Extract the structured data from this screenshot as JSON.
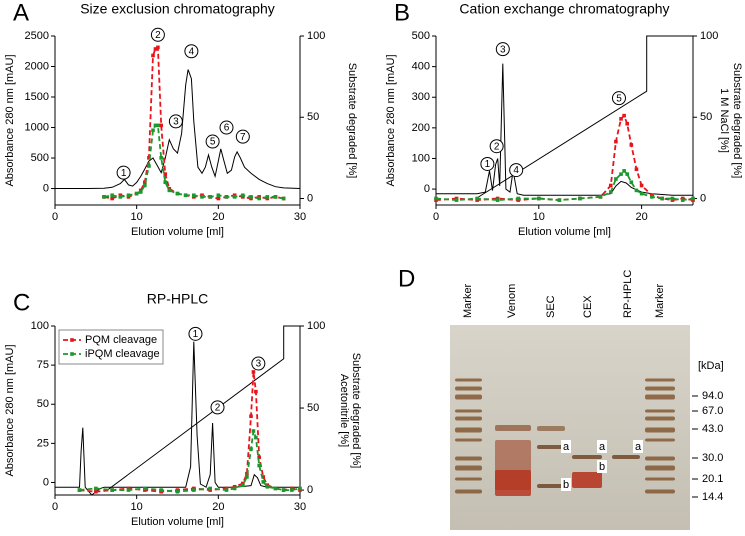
{
  "chart_data": [
    {
      "type": "line",
      "panel": "A",
      "title": "Size exclusion chromatography",
      "xlabel": "Elution volume [ml]",
      "ylabel": "Absorbance 280 nm [mAU]",
      "y2label": "Substrate degraded [%]",
      "xlim": [
        0,
        30
      ],
      "xticks": [
        0,
        10,
        20,
        30
      ],
      "ylim": [
        -270,
        2500
      ],
      "yticks": [
        0,
        500,
        1000,
        1500,
        2000,
        2500
      ],
      "y2lim": [
        -4,
        100
      ],
      "y2ticks": [
        0,
        50,
        100
      ],
      "series": [
        {
          "color": "#000000",
          "style": "solid",
          "axis": "y",
          "x": [
            0,
            2,
            4,
            6,
            7,
            8,
            8.5,
            9,
            9.5,
            10,
            10.5,
            11,
            11.5,
            12,
            12.5,
            13,
            13.5,
            14,
            14.5,
            15,
            15.5,
            16,
            16.3,
            16.7,
            17,
            17.5,
            18,
            18.4,
            18.8,
            19.2,
            19.6,
            20,
            20.3,
            20.7,
            21.1,
            21.6,
            22,
            22.3,
            22.7,
            23.2,
            24,
            25,
            26,
            27,
            28,
            30
          ],
          "values": [
            0,
            0,
            0,
            5,
            20,
            80,
            150,
            60,
            40,
            100,
            200,
            320,
            450,
            500,
            380,
            260,
            500,
            800,
            650,
            580,
            900,
            1700,
            1950,
            1800,
            1100,
            350,
            250,
            350,
            550,
            350,
            200,
            450,
            650,
            450,
            250,
            300,
            520,
            600,
            500,
            350,
            250,
            150,
            80,
            30,
            10,
            0
          ]
        },
        {
          "color": "#e8141c",
          "style": "dashed",
          "markers": true,
          "axis": "y2",
          "x": [
            6,
            7,
            8,
            9,
            10,
            10.5,
            11,
            11.5,
            12,
            12.3,
            12.6,
            13,
            13.5,
            14,
            15,
            16,
            17,
            18,
            19,
            20,
            21,
            22,
            23,
            24,
            25,
            26,
            27,
            28
          ],
          "values": [
            1,
            0,
            2,
            1,
            3,
            5,
            10,
            25,
            88,
            92,
            93,
            45,
            15,
            6,
            3,
            2,
            1,
            2,
            1,
            0,
            1,
            2,
            1,
            0,
            1,
            0,
            1,
            0
          ]
        },
        {
          "color": "#1a9a2e",
          "style": "dashed",
          "markers": true,
          "axis": "y2",
          "x": [
            6,
            7,
            8,
            9,
            10,
            10.5,
            11,
            11.5,
            12,
            12.3,
            12.6,
            13,
            13.5,
            14,
            15,
            16,
            17,
            18,
            19,
            20,
            21,
            22,
            23,
            24,
            25,
            26,
            27,
            28
          ],
          "values": [
            1,
            2,
            1,
            2,
            3,
            4,
            8,
            20,
            42,
            45,
            45,
            25,
            10,
            5,
            3,
            2,
            2,
            1,
            1,
            2,
            1,
            1,
            2,
            1,
            0,
            1,
            1,
            0
          ]
        }
      ],
      "annotations": [
        {
          "label": "1",
          "x": 8.4,
          "y": 260
        },
        {
          "label": "2",
          "x": 12.6,
          "y": 2520
        },
        {
          "label": "3",
          "x": 14.8,
          "y": 1100
        },
        {
          "label": "4",
          "x": 16.7,
          "y": 2250
        },
        {
          "label": "5",
          "x": 19.3,
          "y": 770
        },
        {
          "label": "6",
          "x": 21,
          "y": 1000
        },
        {
          "label": "7",
          "x": 23,
          "y": 850
        }
      ]
    },
    {
      "type": "line",
      "panel": "B",
      "title": "Cation exchange chromatography",
      "xlabel": "Elution volume [ml]",
      "ylabel": "Absorbance 280 nm [mAU]",
      "y2label": "Substrate degraded [%]",
      "gradient_label": "1 M NaCl [%]",
      "xlim": [
        0,
        25
      ],
      "xticks": [
        0,
        10,
        20
      ],
      "ylim": [
        -52,
        500
      ],
      "yticks": [
        0,
        100,
        200,
        300,
        400,
        500
      ],
      "y2lim": [
        -4,
        100
      ],
      "y2ticks": [
        0,
        50,
        100
      ],
      "series": [
        {
          "color": "#000000",
          "style": "solid",
          "axis": "y",
          "x": [
            0,
            2,
            4,
            4.8,
            5.2,
            5.5,
            5.8,
            6.0,
            6.2,
            6.5,
            6.8,
            7.2,
            7.5,
            7.9,
            8.5,
            10,
            12,
            14,
            16,
            17,
            17.5,
            18,
            18.5,
            19,
            20,
            21,
            23,
            25
          ],
          "values": [
            -15,
            -15,
            -15,
            -10,
            60,
            -5,
            80,
            100,
            10,
            410,
            0,
            -10,
            60,
            -15,
            -20,
            -20,
            -20,
            -20,
            -20,
            -15,
            10,
            25,
            20,
            5,
            -10,
            -15,
            -20,
            -20
          ]
        },
        {
          "color": "#000000",
          "style": "solid",
          "axis": "y2",
          "x": [
            3.9,
            20.5,
            20.5,
            25
          ],
          "values": [
            0,
            66,
            100,
            100
          ]
        },
        {
          "color": "#e8141c",
          "style": "dashed",
          "markers": true,
          "axis": "y2",
          "x": [
            0,
            2,
            4,
            6,
            8,
            10,
            12,
            14,
            16,
            17,
            17.5,
            18,
            18.3,
            18.6,
            19,
            19.5,
            20,
            21,
            22,
            23,
            24,
            25
          ],
          "values": [
            -1,
            0,
            -1,
            0,
            -1,
            0,
            -1,
            0,
            1,
            8,
            35,
            49,
            51,
            46,
            33,
            18,
            8,
            2,
            0,
            -1,
            0,
            -1
          ]
        },
        {
          "color": "#1a9a2e",
          "style": "dashed",
          "markers": true,
          "axis": "y2",
          "x": [
            0,
            2,
            4,
            6,
            8,
            10,
            12,
            14,
            16,
            17,
            17.5,
            18,
            18.3,
            18.6,
            19,
            19.5,
            20,
            21,
            22,
            23,
            24,
            25
          ],
          "values": [
            0,
            -1,
            0,
            -1,
            0,
            0,
            -1,
            0,
            1,
            4,
            12,
            15,
            17,
            15,
            10,
            5,
            3,
            1,
            0,
            0,
            -1,
            0
          ]
        }
      ],
      "annotations": [
        {
          "label": "1",
          "x": 5.0,
          "y": 82
        },
        {
          "label": "2",
          "x": 5.9,
          "y": 140
        },
        {
          "label": "3",
          "x": 6.5,
          "y": 457
        },
        {
          "label": "4",
          "x": 7.8,
          "y": 62
        },
        {
          "label": "5",
          "x": 17.8,
          "y": 297
        }
      ]
    },
    {
      "type": "line",
      "panel": "C",
      "title": "RP-HPLC",
      "xlabel": "Elution volume [ml]",
      "ylabel": "Absorbance 280 nm [mAU]",
      "y2label": "Substrate degraded [%]",
      "gradient_label": "Acetonitrile [%]",
      "xlim": [
        0,
        30
      ],
      "xticks": [
        0,
        10,
        20,
        30
      ],
      "ylim": [
        -8,
        100
      ],
      "yticks": [
        0,
        25,
        50,
        75,
        100
      ],
      "y2lim": [
        -3,
        100
      ],
      "y2ticks": [
        0,
        50,
        100
      ],
      "legend": "upper left",
      "series": [
        {
          "color": "#000000",
          "style": "solid",
          "axis": "y",
          "x": [
            0,
            1,
            2,
            3,
            3.2,
            3.4,
            3.7,
            4,
            4.5,
            5,
            5.5,
            6,
            8,
            10,
            12,
            14,
            16,
            16.6,
            17,
            17.4,
            17.8,
            18.5,
            19,
            19.3,
            19.6,
            20,
            22,
            24,
            24.4,
            24.8,
            25.2,
            26,
            28,
            30
          ],
          "values": [
            -3,
            -3,
            -3,
            -3,
            20,
            35,
            -3,
            -5,
            -8,
            -6,
            -4,
            -3,
            -3,
            -3,
            -3,
            -3,
            -3,
            10,
            90,
            30,
            -1,
            -3,
            5,
            38,
            0,
            -3,
            -3,
            -2,
            5,
            3,
            -2,
            -3,
            -3,
            -3
          ]
        },
        {
          "color": "#000000",
          "style": "solid",
          "axis": "y2",
          "x": [
            6.4,
            28,
            28,
            30
          ],
          "values": [
            0,
            80,
            100,
            100
          ]
        },
        {
          "name": "PQM cleavage",
          "color": "#e8141c",
          "style": "dashed",
          "markers": true,
          "axis": "y2",
          "x": [
            3,
            5,
            7,
            9,
            11,
            13,
            15,
            17,
            19,
            21,
            22,
            23,
            23.5,
            24,
            24.3,
            24.6,
            25,
            25.5,
            26,
            27,
            28,
            29,
            30
          ],
          "values": [
            0,
            -1,
            0,
            1,
            0,
            -1,
            0,
            1,
            0,
            1,
            2,
            4,
            10,
            45,
            72,
            60,
            20,
            8,
            3,
            1,
            0,
            1,
            0
          ]
        },
        {
          "name": "iPQM cleavage",
          "color": "#1a9a2e",
          "style": "dashed",
          "markers": true,
          "axis": "y2",
          "x": [
            3,
            5,
            7,
            9,
            11,
            13,
            15,
            17,
            19,
            21,
            22,
            23,
            23.5,
            24,
            24.3,
            24.6,
            25,
            25.5,
            26,
            27,
            28,
            29,
            30
          ],
          "values": [
            0,
            1,
            0,
            0,
            1,
            0,
            -1,
            0,
            1,
            0,
            1,
            3,
            8,
            25,
            36,
            32,
            15,
            5,
            2,
            1,
            0,
            0,
            1
          ]
        }
      ],
      "annotations": [
        {
          "label": "1",
          "x": 17.2,
          "y": 95
        },
        {
          "label": "2",
          "x": 19.9,
          "y": 48
        },
        {
          "label": "3",
          "x": 24.9,
          "y": 76
        }
      ]
    },
    {
      "type": "gel",
      "panel": "D",
      "lanes": [
        "Marker",
        "Venom",
        "SEC",
        "CEX",
        "RP-HPLC",
        "Marker"
      ],
      "size_label": "[kDa]",
      "sizes": [
        "94.0",
        "67.0",
        "43.0",
        "30.0",
        "20.1",
        "14.4"
      ],
      "band_labels": [
        "a",
        "b",
        "a",
        "b",
        "a"
      ]
    }
  ]
}
